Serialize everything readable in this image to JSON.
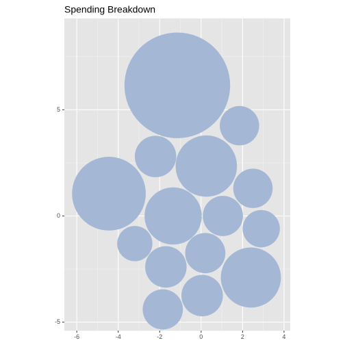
{
  "chart_data": {
    "type": "bubble",
    "title": "Spending Breakdown",
    "xlabel": "",
    "ylabel": "",
    "xlim": [
      -6.6,
      4.3
    ],
    "ylim": [
      -5.4,
      9.3
    ],
    "x_ticks": [
      -6,
      -4,
      -2,
      0,
      2,
      4
    ],
    "y_ticks": [
      -5,
      0,
      5
    ],
    "grid": true,
    "legend": "none",
    "colors": {
      "panel_background": "#e5e5e5",
      "grid_major": "#ffffff",
      "grid_minor": "#f2f2f2",
      "bubble_fill": "#a4b8d6"
    },
    "bubbles": [
      {
        "x": -1.15,
        "y": 6.15,
        "r": 2.55
      },
      {
        "x": 1.85,
        "y": 4.25,
        "r": 0.95
      },
      {
        "x": -2.2,
        "y": 2.8,
        "r": 1.0
      },
      {
        "x": 0.25,
        "y": 2.35,
        "r": 1.48
      },
      {
        "x": -4.45,
        "y": 1.05,
        "r": 1.78
      },
      {
        "x": 2.5,
        "y": 1.3,
        "r": 0.95
      },
      {
        "x": -1.35,
        "y": 0.0,
        "r": 1.38
      },
      {
        "x": 1.05,
        "y": 0.0,
        "r": 0.97
      },
      {
        "x": 2.9,
        "y": -0.6,
        "r": 0.9
      },
      {
        "x": -3.2,
        "y": -1.3,
        "r": 0.85
      },
      {
        "x": 0.2,
        "y": -1.75,
        "r": 0.97
      },
      {
        "x": -1.7,
        "y": -2.4,
        "r": 1.0
      },
      {
        "x": 2.4,
        "y": -2.9,
        "r": 1.45
      },
      {
        "x": 0.05,
        "y": -3.75,
        "r": 1.0
      },
      {
        "x": -1.85,
        "y": -4.4,
        "r": 0.97
      }
    ]
  }
}
